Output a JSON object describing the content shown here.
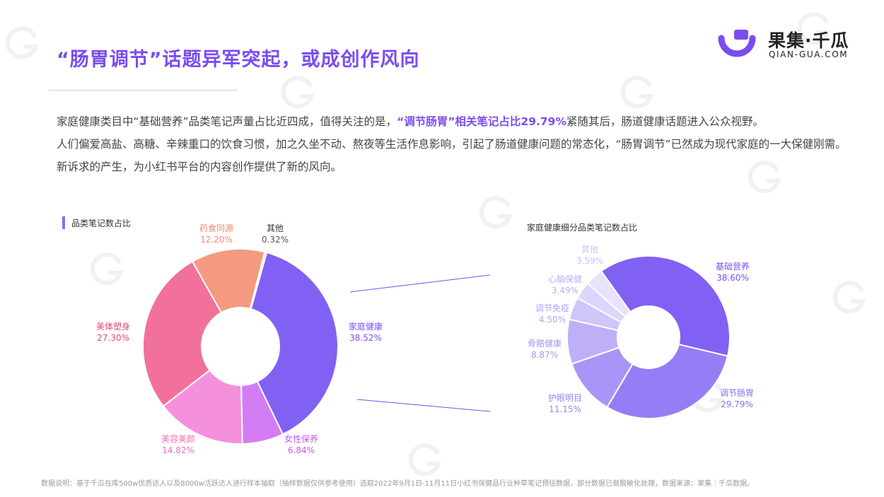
{
  "header": {
    "title": "“肠胃调节”话题异军突起，或成创作风向",
    "logo_cn": "果集·千瓜",
    "logo_en": "QIAN-GUA.COM",
    "logo_icon": "qiangua-logo-icon"
  },
  "body": {
    "p1_before": "家庭健康类目中“基础营养”品类笔记声量占比近四成，值得关注的是，",
    "p1_highlight": "“调节肠胃”相关笔记占比29.79%",
    "p1_after": "紧随其后，肠道健康话题进入公众视野。",
    "p2": "人们偏爱高盐、高糖、辛辣重口的饮食习惯，加之久坐不动、熬夜等生活作息影响，引起了肠道健康问题的常态化，“肠胃调节”已然成为现代家庭的一大保健刚需。新诉求的产生，为小红书平台的内容创作提供了新的风向。"
  },
  "footnote": "数据说明：基于千瓜在库500w优质达人以及8000w活跃达人进行样本抽取（抽样数据仅供参考使用）选取2022年9月1日-11月11日小红书保健品行业种草笔记预估数据，部分数据已做脱敏化处理，数据来源：果集｜千瓜数据。",
  "chart_data": [
    {
      "type": "pie",
      "title": "品类笔记数占比",
      "donut": true,
      "slices": [
        {
          "name": "家庭健康",
          "value": 38.52,
          "label": "38.52%",
          "color": "#8160f4"
        },
        {
          "name": "女性保养",
          "value": 6.84,
          "label": "6.84%",
          "color": "#d47cf4"
        },
        {
          "name": "美容美颜",
          "value": 14.82,
          "label": "14.82%",
          "color": "#f590dc"
        },
        {
          "name": "美体塑身",
          "value": 27.3,
          "label": "27.30%",
          "color": "#f2719a"
        },
        {
          "name": "药食同源",
          "value": 12.2,
          "label": "12.20%",
          "color": "#f39a80"
        },
        {
          "name": "其他",
          "value": 0.32,
          "label": "0.32%",
          "color": "#bdbdbd"
        }
      ]
    },
    {
      "type": "pie",
      "title": "家庭健康细分品类笔记数占比",
      "donut": true,
      "slices": [
        {
          "name": "基础营养",
          "value": 38.6,
          "label": "38.60%",
          "color": "#8160f4"
        },
        {
          "name": "调节肠胃",
          "value": 29.79,
          "label": "29.79%",
          "color": "#977df5"
        },
        {
          "name": "护眼明目",
          "value": 11.15,
          "label": "11.15%",
          "color": "#a995f7"
        },
        {
          "name": "骨骼健康",
          "value": 8.87,
          "label": "8.87%",
          "color": "#bfaff9"
        },
        {
          "name": "调节免疫",
          "value": 4.5,
          "label": "4.50%",
          "color": "#d1c6fa"
        },
        {
          "name": "心脑保健",
          "value": 3.49,
          "label": "3.49%",
          "color": "#ddd5fb"
        },
        {
          "name": "其他",
          "value": 3.59,
          "label": "3.59%",
          "color": "#e8e2fc"
        }
      ]
    }
  ]
}
